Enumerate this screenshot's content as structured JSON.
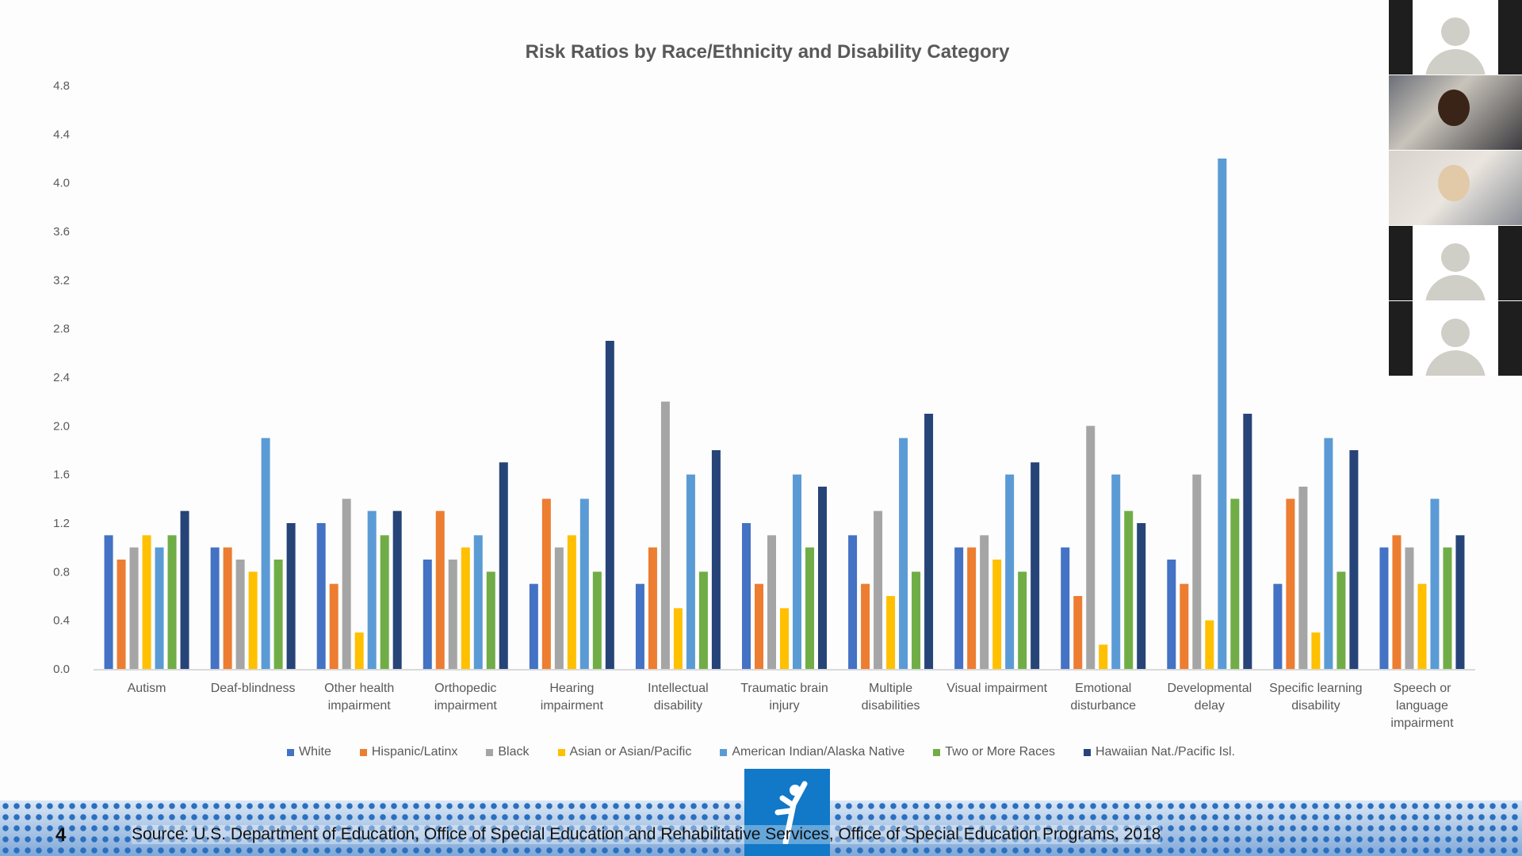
{
  "chart_data": {
    "type": "bar",
    "title": "Risk Ratios by Race/Ethnicity and Disability Category",
    "xlabel": "",
    "ylabel": "",
    "ylim": [
      0,
      4.8
    ],
    "yticks": [
      "0.0",
      "0.4",
      "0.8",
      "1.2",
      "1.6",
      "2.0",
      "2.4",
      "2.8",
      "3.2",
      "3.6",
      "4.0",
      "4.4",
      "4.8"
    ],
    "grid": false,
    "legend_placement": "bottom",
    "categories": [
      [
        "Autism"
      ],
      [
        "Deaf-blindness"
      ],
      [
        "Other health",
        "impairment"
      ],
      [
        "Orthopedic",
        "impairment"
      ],
      [
        "Hearing",
        "impairment"
      ],
      [
        "Intellectual",
        "disability"
      ],
      [
        "Traumatic brain",
        "injury"
      ],
      [
        "Multiple",
        "disabilities"
      ],
      [
        "Visual impairment"
      ],
      [
        "Emotional",
        "disturbance"
      ],
      [
        "Developmental",
        "delay"
      ],
      [
        "Specific learning",
        "disability"
      ],
      [
        "Speech or",
        "language",
        "impairment"
      ]
    ],
    "series": [
      {
        "name": "White",
        "color": "#4472c4",
        "values": [
          1.1,
          1.0,
          1.2,
          0.9,
          0.7,
          0.7,
          1.2,
          1.1,
          1.0,
          1.0,
          0.9,
          0.7,
          1.0
        ]
      },
      {
        "name": "Hispanic/Latinx",
        "color": "#ed7d31",
        "values": [
          0.9,
          1.0,
          0.7,
          1.3,
          1.4,
          1.0,
          0.7,
          0.7,
          1.0,
          0.6,
          0.7,
          1.4,
          1.1
        ]
      },
      {
        "name": "Black",
        "color": "#a5a5a5",
        "values": [
          1.0,
          0.9,
          1.4,
          0.9,
          1.0,
          2.2,
          1.1,
          1.3,
          1.1,
          2.0,
          1.6,
          1.5,
          1.0
        ]
      },
      {
        "name": "Asian or Asian/Pacific",
        "color": "#ffc000",
        "values": [
          1.1,
          0.8,
          0.3,
          1.0,
          1.1,
          0.5,
          0.5,
          0.6,
          0.9,
          0.2,
          0.4,
          0.3,
          0.7
        ]
      },
      {
        "name": "American Indian/Alaska Native",
        "color": "#5b9bd5",
        "values": [
          1.0,
          1.9,
          1.3,
          1.1,
          1.4,
          1.6,
          1.6,
          1.9,
          1.6,
          1.6,
          4.2,
          1.9,
          1.4
        ]
      },
      {
        "name": "Two or More Races",
        "color": "#70ad47",
        "values": [
          1.1,
          0.9,
          1.1,
          0.8,
          0.8,
          0.8,
          1.0,
          0.8,
          0.8,
          1.3,
          1.4,
          0.8,
          1.0
        ]
      },
      {
        "name": "Hawaiian Nat./Pacific Isl.",
        "color": "#264478",
        "values": [
          1.3,
          1.2,
          1.3,
          1.7,
          2.7,
          1.8,
          1.5,
          2.1,
          1.7,
          1.2,
          2.1,
          1.8,
          1.1
        ]
      }
    ]
  },
  "footer": {
    "source": "Source: U.S. Department of Education, Office of Special Education and Rehabilitative Services, Office of Special Education Programs, 2018",
    "page_number": "4"
  },
  "video_tiles": [
    "avatar",
    "camera",
    "camera",
    "avatar",
    "avatar"
  ]
}
